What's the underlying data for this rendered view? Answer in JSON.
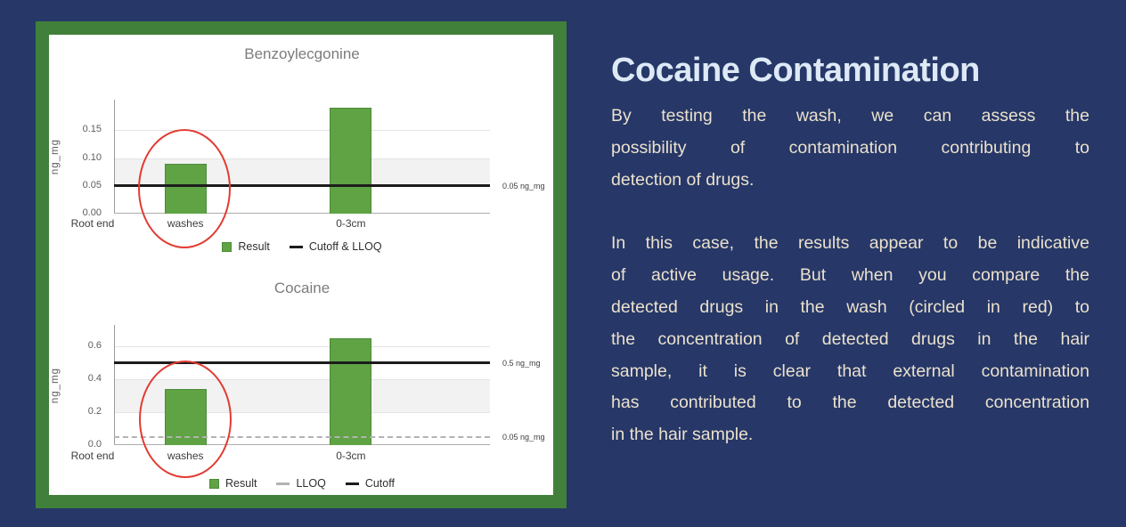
{
  "colors": {
    "background": "#263768",
    "panel_border_green": "#41803a",
    "panel_background": "#ffffff",
    "bar_green": "#5fa344",
    "bar_green_border": "#4c8c38",
    "annotation_red": "#e23b32",
    "heading_text": "#dde9f5",
    "body_text": "#ebe1cc"
  },
  "chart_data": [
    {
      "type": "bar",
      "title": "Benzoylecgonine",
      "ylabel": "ng_mg",
      "xlabel": "",
      "categories": [
        "Root end",
        "washes",
        "0-3cm"
      ],
      "values": [
        null,
        0.09,
        0.19
      ],
      "yticks": [
        {
          "value": 0,
          "label": "0.00"
        },
        {
          "value": 0.05,
          "label": "0.05"
        },
        {
          "value": 0.1,
          "label": "0.10"
        },
        {
          "value": 0.15,
          "label": "0.15"
        }
      ],
      "ylim": [
        0,
        0.205
      ],
      "grid": true,
      "shaded_band": [
        0.05,
        0.1
      ],
      "ref_lines": [
        {
          "value": 0.05,
          "style": "solid",
          "color": "#1c1c1c",
          "label": "0.05 ng_mg"
        }
      ],
      "legend_position": "bottom",
      "legend": [
        {
          "swatch": "square",
          "color": "#5fa344",
          "label": "Result"
        },
        {
          "swatch": "dash",
          "color": "#1c1c1c",
          "label": "Cutoff & LLOQ"
        }
      ],
      "annotation_circle": {
        "category": "washes",
        "color": "#e23b32"
      },
      "category_center_fracs": [
        -0.057,
        0.19,
        0.63
      ]
    },
    {
      "type": "bar",
      "title": "Cocaine",
      "ylabel": "ng_mg",
      "xlabel": "",
      "categories": [
        "Root end",
        "washes",
        "0-3cm"
      ],
      "values": [
        null,
        0.34,
        0.65
      ],
      "yticks": [
        {
          "value": 0,
          "label": "0.0"
        },
        {
          "value": 0.2,
          "label": "0.2"
        },
        {
          "value": 0.4,
          "label": "0.4"
        },
        {
          "value": 0.6,
          "label": "0.6"
        }
      ],
      "ylim": [
        0,
        0.73
      ],
      "grid": true,
      "shaded_band": [
        0.2,
        0.4
      ],
      "ref_lines": [
        {
          "value": 0.5,
          "style": "solid",
          "color": "#1c1c1c",
          "label": "0.5 ng_mg"
        },
        {
          "value": 0.05,
          "style": "dashed",
          "color": "#b3b3b3",
          "label": "0.05 ng_mg"
        }
      ],
      "legend_position": "bottom",
      "legend": [
        {
          "swatch": "square",
          "color": "#5fa344",
          "label": "Result"
        },
        {
          "swatch": "dash",
          "color": "#b3b3b3",
          "label": "LLOQ"
        },
        {
          "swatch": "dash",
          "color": "#1c1c1c",
          "label": "Cutoff"
        }
      ],
      "annotation_circle": {
        "category": "washes",
        "color": "#e23b32"
      },
      "category_center_fracs": [
        -0.057,
        0.19,
        0.63
      ]
    }
  ],
  "text_panel": {
    "heading": "Cocaine Contamination",
    "paragraphs": [
      {
        "text": "By testing the wash, we can assess the possibility of contamination contributing to detection of drugs.",
        "lines": [
          "By testing the wash, we can assess the",
          "possibility of contamination contributing to",
          "detection of drugs."
        ]
      },
      {
        "text": "In this case, the results appear to be indicative of active usage. But when you compare the detected drugs in the wash (circled in red) to the concentration of detected drugs in the hair sample, it is clear that external contamination has contributed to the detected concentration in the hair sample.",
        "lines": [
          "In this case, the results appear to be indicative",
          "of active usage. But when you compare the",
          "detected drugs in the wash (circled in red) to",
          "the concentration of detected drugs in the hair",
          "sample, it is clear that external contamination",
          "has contributed to the detected concentration",
          "in the hair sample."
        ]
      }
    ]
  }
}
